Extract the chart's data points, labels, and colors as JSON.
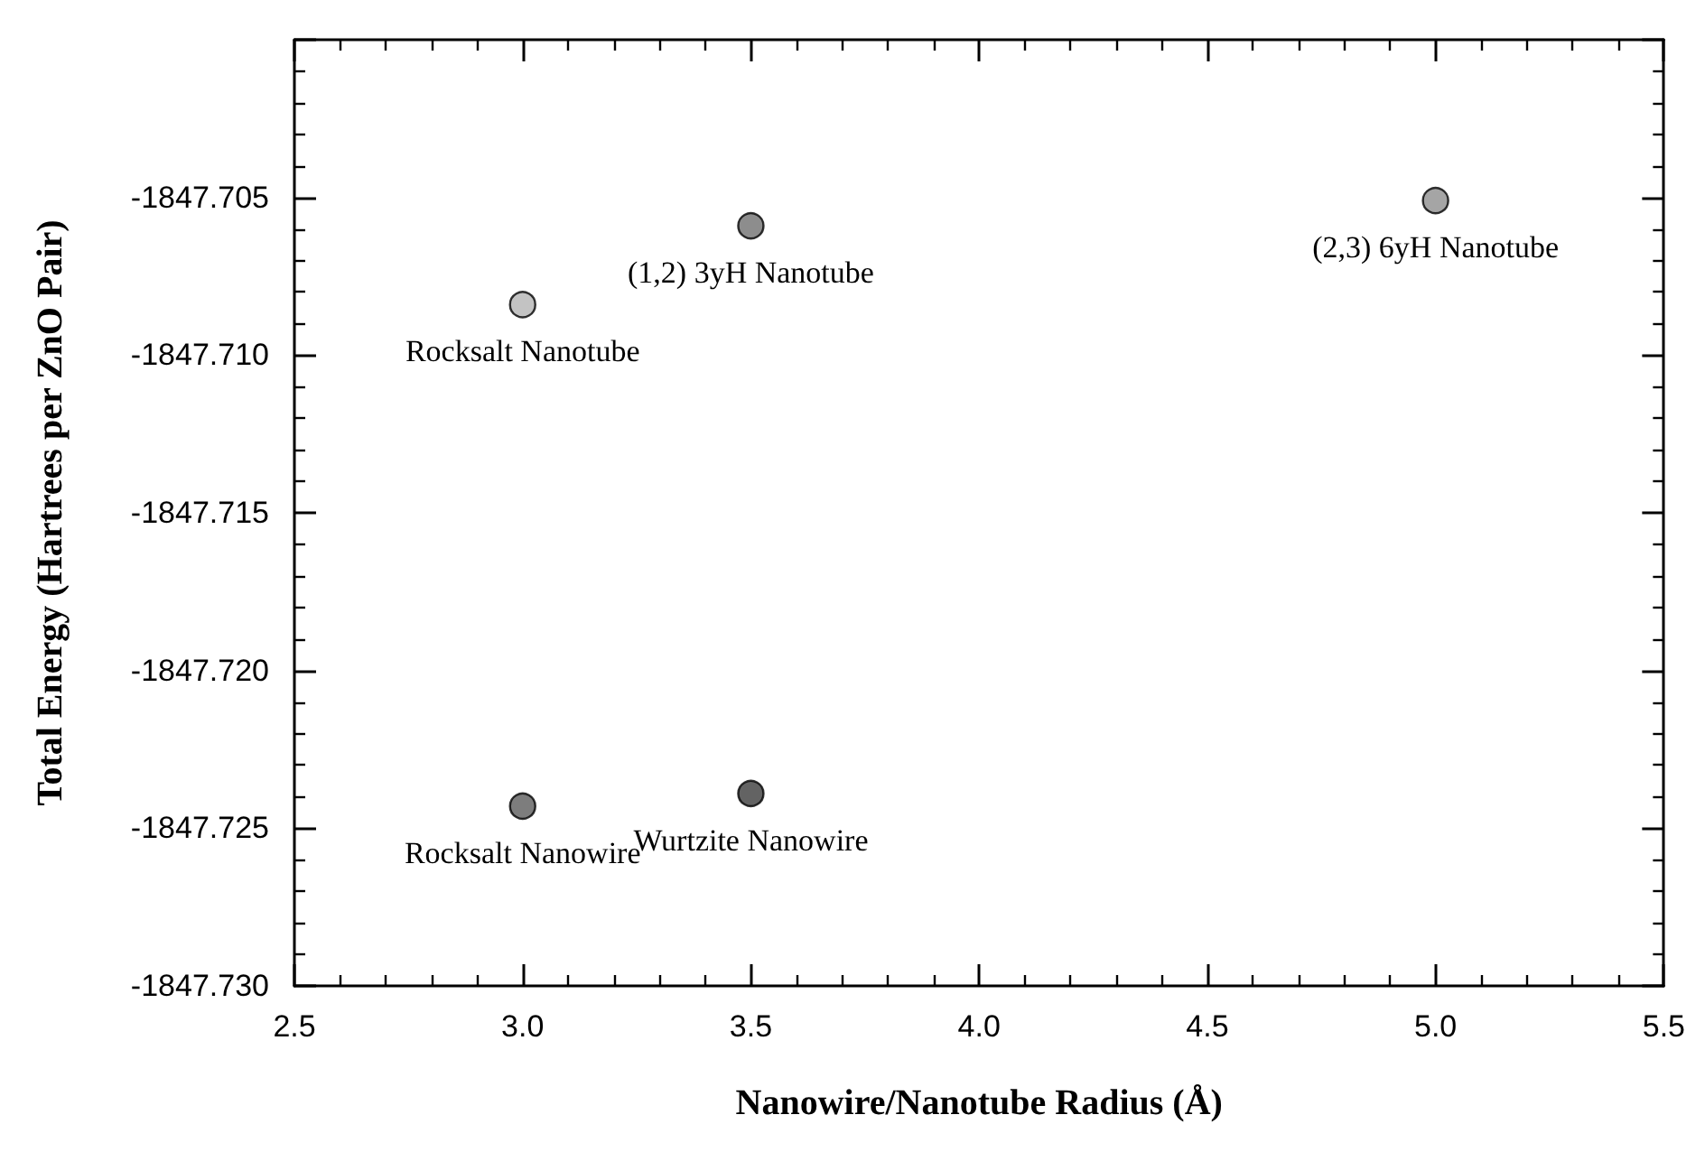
{
  "chart_data": {
    "type": "scatter",
    "xlabel": "Nanowire/Nanotube Radius (Å)",
    "ylabel": "Total Energy (Hartrees per ZnO Pair)",
    "x": [
      3.0,
      3.5,
      5.0,
      3.0,
      3.5
    ],
    "values": [
      -1847.7084,
      -1847.7059,
      -1847.7051,
      -1847.7243,
      -1847.7239
    ],
    "colors": [
      "#b4b4b4",
      "#707070",
      "#8e8e8e",
      "#5c5c5c",
      "#3c3c3c"
    ],
    "marker": "circle",
    "grid": false,
    "xlim": [
      2.5,
      5.5
    ],
    "xticks": [
      {
        "value": 2.5,
        "label": "2.5"
      },
      {
        "value": 3.0,
        "label": "3.0"
      },
      {
        "value": 3.5,
        "label": "3.5"
      },
      {
        "value": 4.0,
        "label": "4.0"
      },
      {
        "value": 4.5,
        "label": "4.5"
      },
      {
        "value": 5.0,
        "label": "5.0"
      },
      {
        "value": 5.5,
        "label": "5.5"
      }
    ],
    "ylim": [
      -1847.73,
      -1847.7
    ],
    "yticks": [
      {
        "value": -1847.73,
        "label": "-1847.730"
      },
      {
        "value": -1847.725,
        "label": "-1847.725"
      },
      {
        "value": -1847.72,
        "label": "-1847.720"
      },
      {
        "value": -1847.715,
        "label": "-1847.715"
      },
      {
        "value": -1847.71,
        "label": "-1847.710"
      },
      {
        "value": -1847.705,
        "label": "-1847.705"
      },
      {
        "value": -1847.7,
        "label": null
      }
    ],
    "annotations": [
      {
        "text": "Rocksalt Nanotube",
        "x": 3.0,
        "y": -1847.7084
      },
      {
        "text": "(1,2) 3yH Nanotube",
        "x": 3.5,
        "y": -1847.7059
      },
      {
        "text": "(2,3) 6yH Nanotube",
        "x": 5.0,
        "y": -1847.7051
      },
      {
        "text": "Rocksalt Nanowire",
        "x": 3.0,
        "y": -1847.7243
      },
      {
        "text": "Wurtzite Nanowire",
        "x": 3.5,
        "y": -1847.7239
      }
    ]
  }
}
